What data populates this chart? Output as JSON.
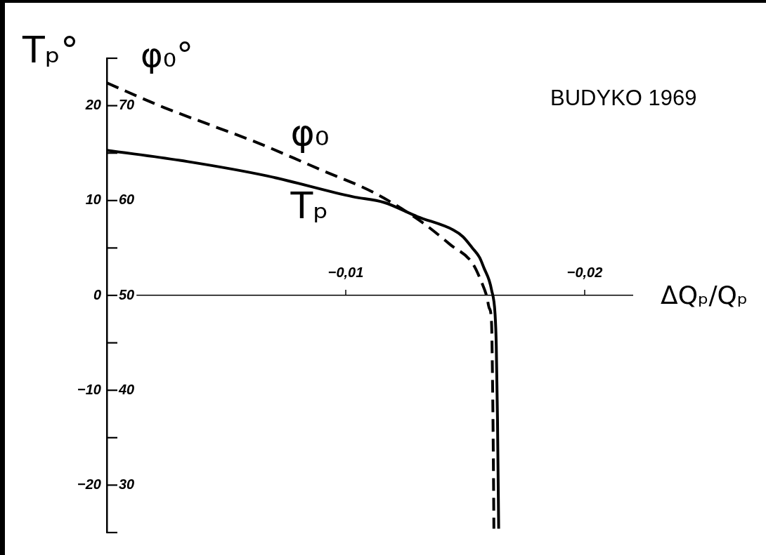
{
  "chart_data": {
    "type": "line",
    "xlabel": "ΔQₚ/Qₚ",
    "ylabel": "Tₚ°",
    "y2label": "φ₀°",
    "annotations": [
      "BUDYKO 1969"
    ],
    "xlim": [
      0,
      -0.022
    ],
    "xticks": [
      {
        "value": -0.01,
        "label": "−0,01"
      },
      {
        "value": -0.02,
        "label": "−0,02"
      }
    ],
    "ylim": [
      -25,
      25
    ],
    "yticks": [
      {
        "value": 25,
        "label": null
      },
      20,
      {
        "value": 15,
        "label": null
      },
      10,
      {
        "value": 5,
        "label": null
      },
      0,
      {
        "value": -5,
        "label": null
      },
      {
        "value": -10,
        "label": "−10"
      },
      {
        "value": -15,
        "label": null
      },
      {
        "value": -20,
        "label": "−20"
      },
      {
        "value": -25,
        "label": null
      }
    ],
    "y2lim": [
      25,
      75
    ],
    "y2ticks": [
      70,
      60,
      50,
      40,
      30
    ],
    "series": [
      {
        "name": "Tₚ",
        "color": "#000000",
        "line_style": "solid",
        "x": [
          0,
          -0.0034,
          -0.0067,
          -0.0103,
          -0.0116,
          -0.013,
          -0.0145,
          -0.0149,
          -0.0153,
          -0.0156,
          -0.0158,
          -0.016,
          -0.0161,
          -0.01625,
          -0.0163,
          -0.01635,
          -0.0164
        ],
        "values": [
          15.3,
          14.1,
          12.6,
          10.4,
          9.8,
          8.3,
          6.9,
          6.2,
          5.0,
          4.0,
          2.8,
          1.6,
          0.6,
          -2.0,
          -5.3,
          -12.9,
          -24.6
        ]
      },
      {
        "name": "φ₀",
        "color": "#000000",
        "line_style": "dashed",
        "axis": "y2",
        "x": [
          0,
          -0.0024,
          -0.0044,
          -0.0063,
          -0.0078,
          -0.0089,
          -0.0112,
          -0.0132,
          -0.0144,
          -0.0153,
          -0.0157,
          -0.0159,
          -0.016,
          -0.0161,
          -0.01615,
          -0.01618,
          -0.0162
        ],
        "values": [
          72.4,
          69.8,
          67.9,
          66.1,
          64.5,
          63.3,
          60.8,
          57.7,
          55.3,
          53.4,
          51.3,
          49.9,
          48.7,
          47.2,
          39.6,
          32.0,
          25.4
        ]
      }
    ]
  }
}
